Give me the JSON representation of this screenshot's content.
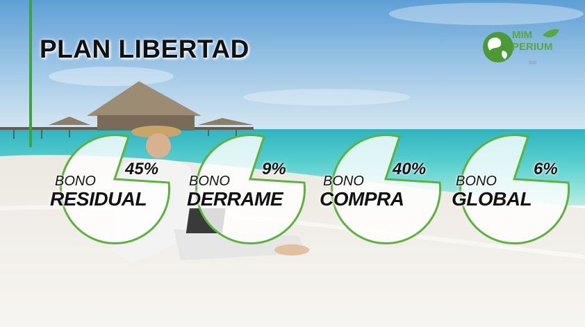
{
  "title": "PLAN LIBERTAD",
  "logo": {
    "line1": "MIM",
    "line2": "PERIUM",
    "line3": "2022",
    "icon": "globe-leaf-icon",
    "color": "#5aa83c"
  },
  "accent_color": "#3aa63a",
  "bonuses": [
    {
      "bono": "BONO",
      "name": "RESIDUAL",
      "percent": "45%"
    },
    {
      "bono": "BONO",
      "name": "DERRAME",
      "percent": "9%"
    },
    {
      "bono": "BONO",
      "name": "COMPRA",
      "percent": "40%"
    },
    {
      "bono": "BONO",
      "name": "GLOBAL",
      "percent": "6%"
    }
  ]
}
